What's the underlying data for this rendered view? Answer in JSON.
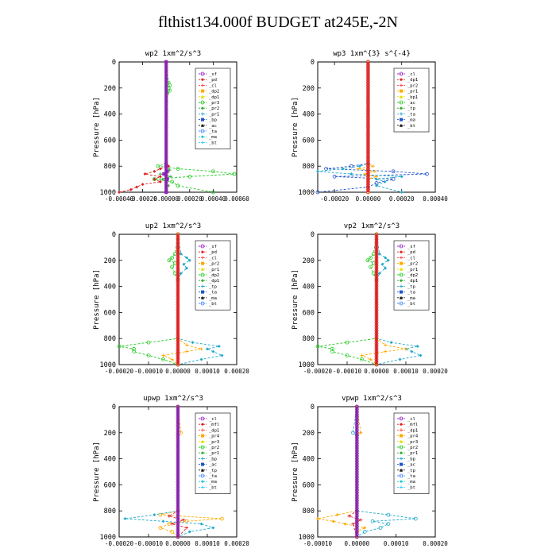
{
  "page_title": "flthist134.000f  BUDGET at245E,-2N",
  "chart_data": [
    {
      "type": "line",
      "title": "wp2   1xm^2/s^3",
      "ylabel": "Pressure [hPa]",
      "xlim": [
        -0.0004,
        0.0006
      ],
      "ylim": [
        1000,
        0
      ],
      "xticks": [
        "-0.00040",
        "-0.00020",
        "0.00000",
        "0.00020",
        "0.00040",
        "0.00060"
      ],
      "yticks": [
        "0",
        "200",
        "400",
        "600",
        "800",
        "1000"
      ],
      "legend": [
        "_sf",
        "_pd",
        "_cl",
        "_dp2",
        "_dp1",
        "_pr3",
        "_pr2",
        "_pr1",
        "_bp",
        "_ac",
        "_ta",
        "_ma",
        "_bt"
      ],
      "series": [
        {
          "name": "_pr1",
          "color": "#22cc22",
          "p": [
            0,
            160,
            180,
            200,
            220,
            240,
            780,
            800,
            820,
            840,
            860,
            880,
            900,
            920,
            950,
            1000
          ],
          "v": [
            0,
            2e-05,
            3e-05,
            2e-05,
            3e-05,
            1e-05,
            0,
            -7e-05,
            0.0001,
            0.0004,
            0.00058,
            0.0002,
            -0.0001,
            5e-05,
            0.0001,
            0.0004
          ]
        },
        {
          "name": "_dp2",
          "color": "#dd2222",
          "p": [
            0,
            780,
            800,
            820,
            840,
            860,
            880,
            900,
            920,
            940,
            960,
            980,
            1000
          ],
          "v": [
            0,
            0,
            2e-05,
            -5e-05,
            -0.0001,
            -0.00018,
            -5e-05,
            -0.0001,
            -5e-05,
            -0.0002,
            -0.00025,
            -0.0003,
            -0.00042
          ]
        },
        {
          "name": "_bp",
          "color": "#33aa33",
          "p": [
            0,
            800,
            830,
            860,
            880,
            900,
            950,
            1000
          ],
          "v": [
            0,
            0,
            3e-05,
            -5e-05,
            4e-05,
            -3e-05,
            2e-05,
            0
          ]
        },
        {
          "name": "_pd",
          "color": "#9922cc",
          "p": [
            0,
            800,
            840,
            860,
            900,
            1000
          ],
          "v": [
            0,
            0,
            1e-05,
            -2e-05,
            1e-05,
            0
          ]
        },
        {
          "name": "_bt",
          "color": "#8822aa",
          "p": [
            0,
            1000
          ],
          "v": [
            0,
            0
          ]
        }
      ]
    },
    {
      "type": "line",
      "title": "wp3   1xm^{3} s^{-4}",
      "ylabel": "Pressure [hPa]",
      "xlim": [
        -0.0003,
        0.0004
      ],
      "ylim": [
        1000,
        0
      ],
      "xticks": [
        "-0.00020",
        "0.00000",
        "0.00020",
        "0.00040"
      ],
      "yticks": [
        "0",
        "200",
        "400",
        "600",
        "800",
        "1000"
      ],
      "legend": [
        "_cl",
        "_dp1",
        "_pr2",
        "_pr1",
        "_bp1",
        "_ac",
        "_tp",
        "_ta",
        "_ma",
        "_bt"
      ],
      "series": [
        {
          "name": "_tp",
          "color": "#2255cc",
          "p": [
            0,
            780,
            800,
            820,
            840,
            860,
            880,
            900,
            930,
            960,
            1000
          ],
          "v": [
            0,
            0,
            -0.0001,
            -0.00025,
            0.00015,
            0.00035,
            -0.0002,
            0.00015,
            5e-05,
            0,
            -0.0003
          ]
        },
        {
          "name": "_ac",
          "color": "#22aacc",
          "p": [
            0,
            780,
            800,
            820,
            840,
            860,
            880,
            900,
            920,
            950,
            1000
          ],
          "v": [
            0,
            0,
            -5e-05,
            -0.00015,
            -0.0003,
            -0.0001,
            0.0002,
            5e-05,
            0.0001,
            5e-05,
            0.0002
          ]
        },
        {
          "name": "_pr2",
          "color": "#ffaa00",
          "p": [
            0,
            780,
            800,
            820,
            840,
            860,
            880,
            900,
            1000
          ],
          "v": [
            0,
            0,
            3e-05,
            -6e-05,
            4e-05,
            -2e-05,
            5e-05,
            0,
            0
          ]
        },
        {
          "name": "_bt",
          "color": "#dd2222",
          "p": [
            0,
            1000
          ],
          "v": [
            0,
            0
          ]
        }
      ]
    },
    {
      "type": "line",
      "title": "up2   1xm^2/s^3",
      "ylabel": "Pressure [hPa]",
      "xlim": [
        -0.0002,
        0.0002
      ],
      "ylim": [
        1000,
        0
      ],
      "xticks": [
        "-0.00020",
        "-0.00010",
        "0.00000",
        "0.00010",
        "0.00020"
      ],
      "yticks": [
        "0",
        "200",
        "400",
        "600",
        "800",
        "1000"
      ],
      "legend": [
        "_sf",
        "_pd",
        "_cl",
        "_pr2",
        "_pr1",
        "_dp2",
        "_dp1",
        "_tp",
        "_ta",
        "_ma",
        "_bt"
      ],
      "series": [
        {
          "name": "_dp2",
          "color": "#22cc22",
          "p": [
            0,
            150,
            180,
            200,
            220,
            250,
            300,
            350,
            800,
            830,
            860,
            880,
            900,
            930,
            960,
            1000
          ],
          "v": [
            0,
            -1e-05,
            -2e-05,
            -3e-05,
            -1e-05,
            -2e-05,
            -1e-05,
            0,
            0,
            -0.0001,
            -0.00022,
            -0.00015,
            -0.00015,
            -0.0001,
            -5e-05,
            0
          ]
        },
        {
          "name": "_tp",
          "color": "#22aacc",
          "p": [
            0,
            150,
            180,
            200,
            230,
            260,
            300,
            350,
            800,
            830,
            860,
            880,
            900,
            930,
            960,
            1000
          ],
          "v": [
            0,
            1e-05,
            3e-05,
            4e-05,
            2e-05,
            3e-05,
            1e-05,
            0,
            0,
            5e-05,
            0.00014,
            0.0001,
            0.00012,
            0.00015,
            8e-05,
            0
          ]
        },
        {
          "name": "_pr2",
          "color": "#ffaa00",
          "p": [
            0,
            800,
            850,
            880,
            900,
            930,
            960,
            1000
          ],
          "v": [
            0,
            0,
            3e-05,
            8e-05,
            3e-05,
            -5e-05,
            -2e-05,
            0
          ]
        },
        {
          "name": "_bt",
          "color": "#dd2222",
          "p": [
            0,
            1000
          ],
          "v": [
            0,
            0
          ]
        }
      ]
    },
    {
      "type": "line",
      "title": "vp2   1xm^2/s^3",
      "ylabel": "Pressure [hPa]",
      "xlim": [
        -0.0002,
        0.0002
      ],
      "ylim": [
        1000,
        0
      ],
      "xticks": [
        "-0.00020",
        "-0.00010",
        "0.00000",
        "0.00010",
        "0.00020"
      ],
      "yticks": [
        "0",
        "200",
        "400",
        "600",
        "800",
        "1000"
      ],
      "legend": [
        "_sf",
        "_pd",
        "_cl",
        "_pr2",
        "_pr1",
        "_dp2",
        "_dp1",
        "_tp",
        "_ta",
        "_ma",
        "_bt"
      ],
      "series": [
        {
          "name": "_dp2",
          "color": "#22cc22",
          "p": [
            0,
            150,
            180,
            200,
            220,
            250,
            300,
            350,
            800,
            830,
            860,
            880,
            900,
            930,
            960,
            1000
          ],
          "v": [
            0,
            -1e-05,
            -2e-05,
            -3e-05,
            -1e-05,
            -2e-05,
            -1e-05,
            0,
            0,
            -0.0001,
            -0.00022,
            -0.00015,
            -0.00015,
            -0.0001,
            -5e-05,
            0
          ]
        },
        {
          "name": "_tp",
          "color": "#22aacc",
          "p": [
            0,
            150,
            180,
            200,
            230,
            260,
            300,
            350,
            800,
            830,
            860,
            880,
            900,
            930,
            960,
            1000
          ],
          "v": [
            0,
            1e-05,
            3e-05,
            4e-05,
            2e-05,
            3e-05,
            1e-05,
            0,
            0,
            5e-05,
            0.00014,
            0.0001,
            0.00012,
            0.00015,
            8e-05,
            0
          ]
        },
        {
          "name": "_pr2",
          "color": "#ffaa00",
          "p": [
            0,
            800,
            850,
            880,
            900,
            930,
            960,
            1000
          ],
          "v": [
            0,
            0,
            3e-05,
            0.0001,
            3e-05,
            -5e-05,
            -2e-05,
            0
          ]
        },
        {
          "name": "_bt",
          "color": "#dd2222",
          "p": [
            0,
            1000
          ],
          "v": [
            0,
            0
          ]
        }
      ]
    },
    {
      "type": "line",
      "title": "upwp   1xm^2/s^3",
      "ylabel": "Pressure [hPa]",
      "xlim": [
        -0.0002,
        0.0002
      ],
      "ylim": [
        1000,
        0
      ],
      "xticks": [
        "-0.00020",
        "-0.00010",
        "0.00000",
        "0.00010",
        "0.00020"
      ],
      "yticks": [
        "0",
        "200",
        "400",
        "600",
        "800",
        "1000"
      ],
      "legend": [
        "_cl",
        "_mfl",
        "_dp1",
        "_pr4",
        "_pr3",
        "_pr2",
        "_pr1",
        "_bp",
        "_ac",
        "_tp",
        "_ta",
        "_ma",
        "_bt"
      ],
      "series": [
        {
          "name": "_pr2",
          "color": "#ffaa00",
          "p": [
            0,
            200,
            220,
            800,
            830,
            860,
            880,
            900,
            930,
            960,
            1000
          ],
          "v": [
            0,
            1e-05,
            0,
            0,
            -6e-05,
            0.00015,
            3e-05,
            -3e-05,
            -6e-05,
            -2e-05,
            0
          ]
        },
        {
          "name": "_ac",
          "color": "#22aacc",
          "p": [
            0,
            800,
            830,
            860,
            880,
            900,
            930,
            960,
            1000
          ],
          "v": [
            0,
            0,
            -8e-05,
            -0.00018,
            -5e-05,
            8e-05,
            0.00012,
            4e-05,
            0
          ]
        },
        {
          "name": "_pr4",
          "color": "#dd2222",
          "p": [
            0,
            800,
            840,
            870,
            900,
            930,
            1000
          ],
          "v": [
            0,
            0,
            -3e-05,
            2e-05,
            -2e-05,
            3e-05,
            0
          ]
        },
        {
          "name": "_bt",
          "color": "#8822aa",
          "p": [
            0,
            1000
          ],
          "v": [
            0,
            0
          ]
        }
      ]
    },
    {
      "type": "line",
      "title": "vpwp   1xm^2/s^3",
      "ylabel": "Pressure [hPa]",
      "xlim": [
        -0.0001,
        0.0002
      ],
      "ylim": [
        1000,
        0
      ],
      "xticks": [
        "-0.00010",
        "0.00000",
        "0.00010",
        "0.00020"
      ],
      "yticks": [
        "0",
        "200",
        "400",
        "600",
        "800",
        "1000"
      ],
      "legend": [
        "_cl",
        "_mfl",
        "_dp1",
        "_pr4",
        "_pr3",
        "_pr2",
        "_pr1",
        "_bp",
        "_ac",
        "_tp",
        "_ta",
        "_ma",
        "_bt"
      ],
      "series": [
        {
          "name": "_ac",
          "color": "#22aacc",
          "p": [
            0,
            200,
            220,
            800,
            830,
            860,
            880,
            900,
            930,
            960,
            1000
          ],
          "v": [
            0,
            -1e-05,
            0,
            0,
            8e-05,
            0.00015,
            4e-05,
            8e-05,
            6e-05,
            2e-05,
            0
          ]
        },
        {
          "name": "_pr2",
          "color": "#ffaa00",
          "p": [
            0,
            200,
            220,
            800,
            830,
            860,
            880,
            900,
            930,
            960,
            1000
          ],
          "v": [
            0,
            1e-05,
            0,
            0,
            -5e-05,
            -0.00012,
            -6e-05,
            -3e-05,
            2e-05,
            0,
            0
          ]
        },
        {
          "name": "_pr4",
          "color": "#dd2222",
          "p": [
            0,
            800,
            840,
            870,
            900,
            1000
          ],
          "v": [
            0,
            0,
            -2e-05,
            1e-05,
            -1e-05,
            0
          ]
        },
        {
          "name": "_bt",
          "color": "#8822aa",
          "p": [
            0,
            1000
          ],
          "v": [
            0,
            0
          ]
        }
      ]
    }
  ]
}
